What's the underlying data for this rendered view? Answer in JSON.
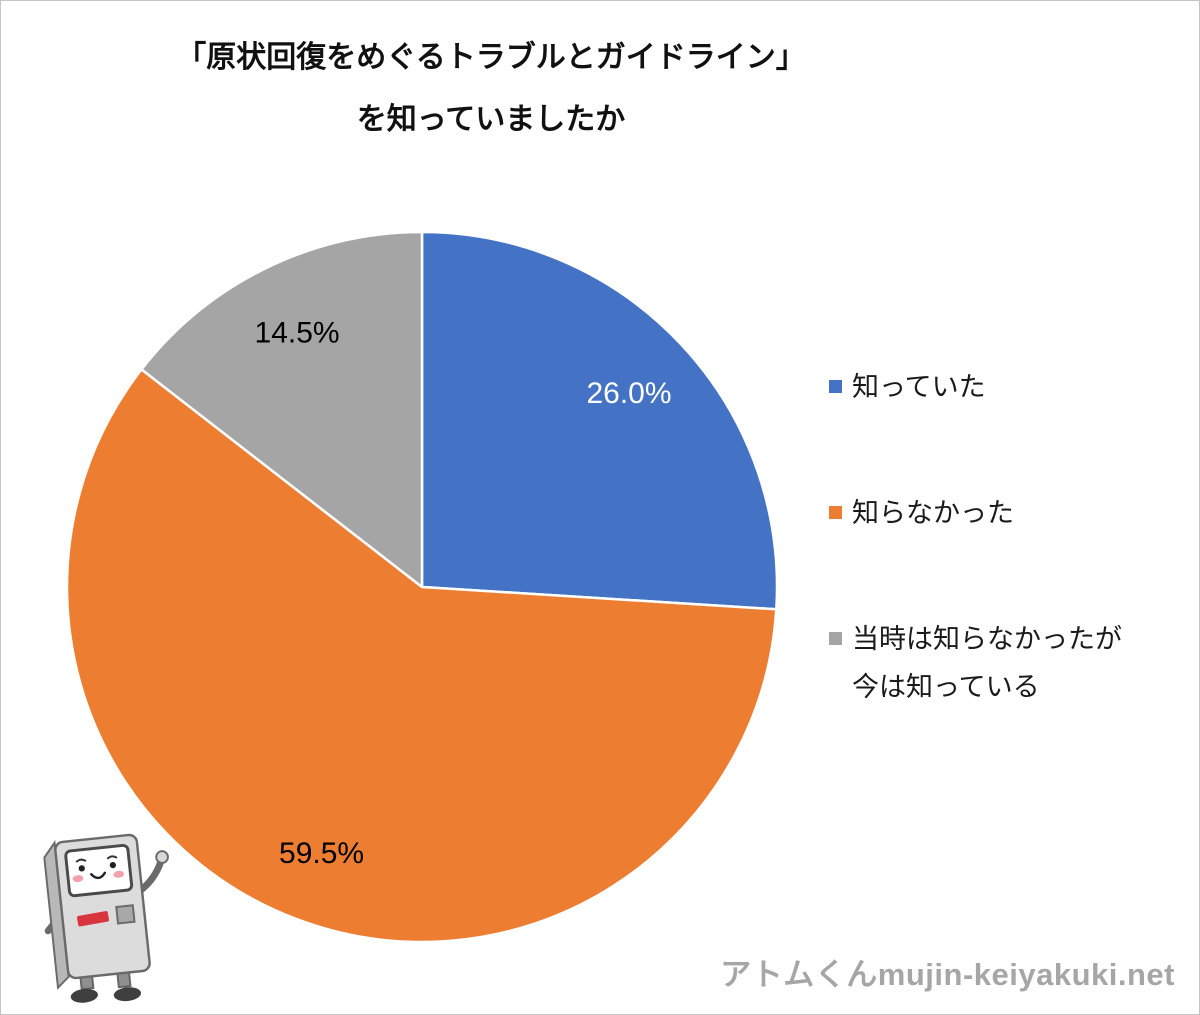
{
  "title": {
    "line1": "「原状回復をめぐるトラブルとガイドライン」",
    "line2": "を知っていましたか"
  },
  "chart_data": {
    "type": "pie",
    "title": "「原状回復をめぐるトラブルとガイドライン」を知っていましたか",
    "labels": [
      "知っていた",
      "知らなかった",
      "当時は知らなかったが今は知っている"
    ],
    "values": [
      26.0,
      59.5,
      14.5
    ],
    "value_labels": [
      "26.0%",
      "59.5%",
      "14.5%"
    ],
    "colors": [
      "#4472C4",
      "#ED7D31",
      "#A5A5A5"
    ],
    "label_colors": [
      "#ffffff",
      "#000000",
      "#000000"
    ],
    "start_angle_deg": 0,
    "direction": "clockwise",
    "legend_position": "right"
  },
  "legend": {
    "items": [
      {
        "color": "#4472C4",
        "lines": [
          "知っていた"
        ]
      },
      {
        "color": "#ED7D31",
        "lines": [
          "知らなかった"
        ]
      },
      {
        "color": "#A5A5A5",
        "lines": [
          "当時は知らなかったが",
          "今は知っている"
        ]
      }
    ]
  },
  "watermark": "アトムくんmujin-keiyakuki.net",
  "mascot": {
    "name": "アトムくん"
  }
}
